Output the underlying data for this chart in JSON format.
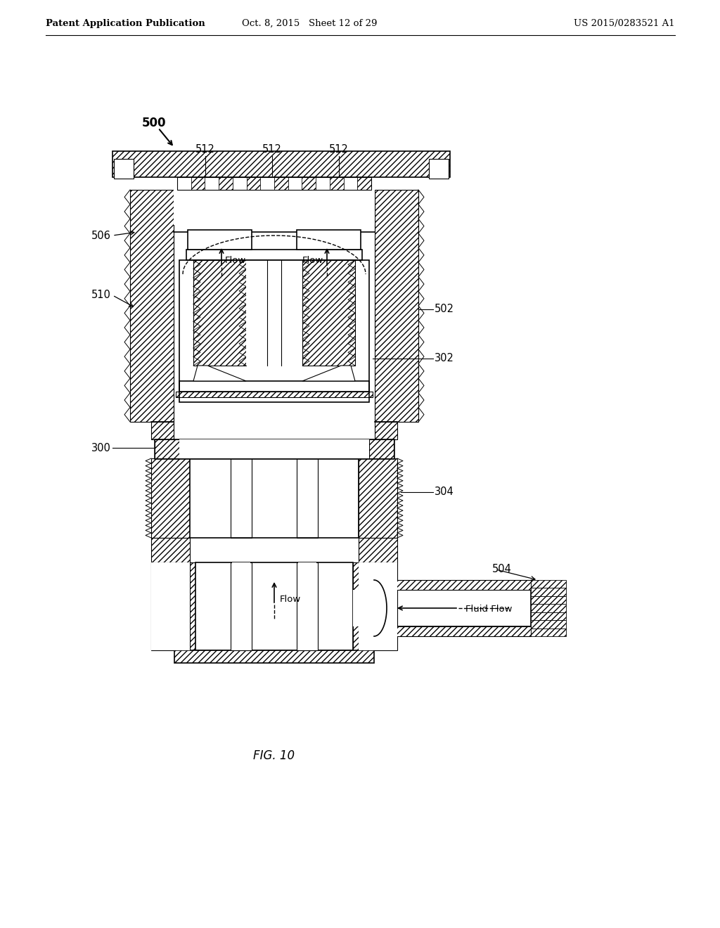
{
  "header_left": "Patent Application Publication",
  "header_middle": "Oct. 8, 2015   Sheet 12 of 29",
  "header_right": "US 2015/0283521 A1",
  "fig_label": "FIG. 10",
  "bg_color": "#ffffff"
}
